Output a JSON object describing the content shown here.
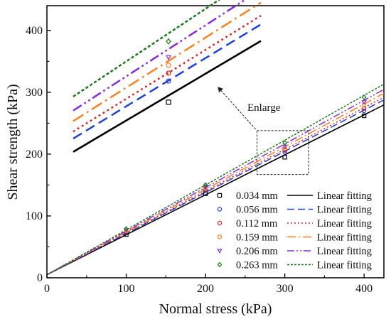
{
  "chart_data": {
    "type": "scatter",
    "xlabel": "Normal stress  (kPa)",
    "ylabel": "Shear strength  (kPa)",
    "xlim": [
      0,
      425
    ],
    "ylim": [
      0,
      440
    ],
    "xticks": [
      0,
      100,
      200,
      300,
      400
    ],
    "yticks": [
      0,
      100,
      200,
      300,
      400
    ],
    "grid": false,
    "legend_position": "bottom-right",
    "annotation": "Enlarge",
    "series": [
      {
        "name": "0.034 mm",
        "fit_name": "Linear fitting",
        "color": "#000000",
        "marker": "square",
        "dash": "",
        "x": [
          100,
          200,
          300,
          400
        ],
        "y": [
          70,
          136,
          195,
          262
        ],
        "fit": {
          "intercept": 5,
          "slope": 0.646
        }
      },
      {
        "name": "0.056 mm",
        "fit_name": "Linear fitting",
        "color": "#1d3fe0",
        "marker": "circle",
        "dash": "10,5",
        "x": [
          100,
          200,
          300,
          400
        ],
        "y": [
          74,
          141,
          203,
          270
        ],
        "fit": {
          "intercept": 5,
          "slope": 0.665
        }
      },
      {
        "name": "0.112 mm",
        "fit_name": "Linear fitting",
        "color": "#e02020",
        "marker": "circle",
        "dash": "2,3",
        "x": [
          100,
          200,
          300,
          400
        ],
        "y": [
          75,
          143,
          206,
          274
        ],
        "fit": {
          "intercept": 5,
          "slope": 0.675
        }
      },
      {
        "name": "0.159 mm",
        "fit_name": "Linear fitting",
        "color": "#ff7f1a",
        "marker": "circle",
        "dash": "12,4,2,4",
        "x": [
          100,
          200,
          300,
          400
        ],
        "y": [
          76,
          145,
          209,
          280
        ],
        "fit": {
          "intercept": 5,
          "slope": 0.69
        }
      },
      {
        "name": "0.206 mm",
        "fit_name": "Linear fitting",
        "color": "#8a2be2",
        "marker": "triangle-down",
        "dash": "10,3,2,3,2,3",
        "x": [
          100,
          200,
          300,
          400
        ],
        "y": [
          77,
          147,
          212,
          284
        ],
        "fit": {
          "intercept": 5,
          "slope": 0.705
        }
      },
      {
        "name": "0.263 mm",
        "fit_name": "Linear fitting",
        "color": "#1a7a1a",
        "marker": "diamond",
        "dash": "3,2",
        "x": [
          100,
          200,
          300,
          400
        ],
        "y": [
          79,
          150,
          218,
          292
        ],
        "fit": {
          "intercept": 5,
          "slope": 0.725
        }
      }
    ]
  }
}
